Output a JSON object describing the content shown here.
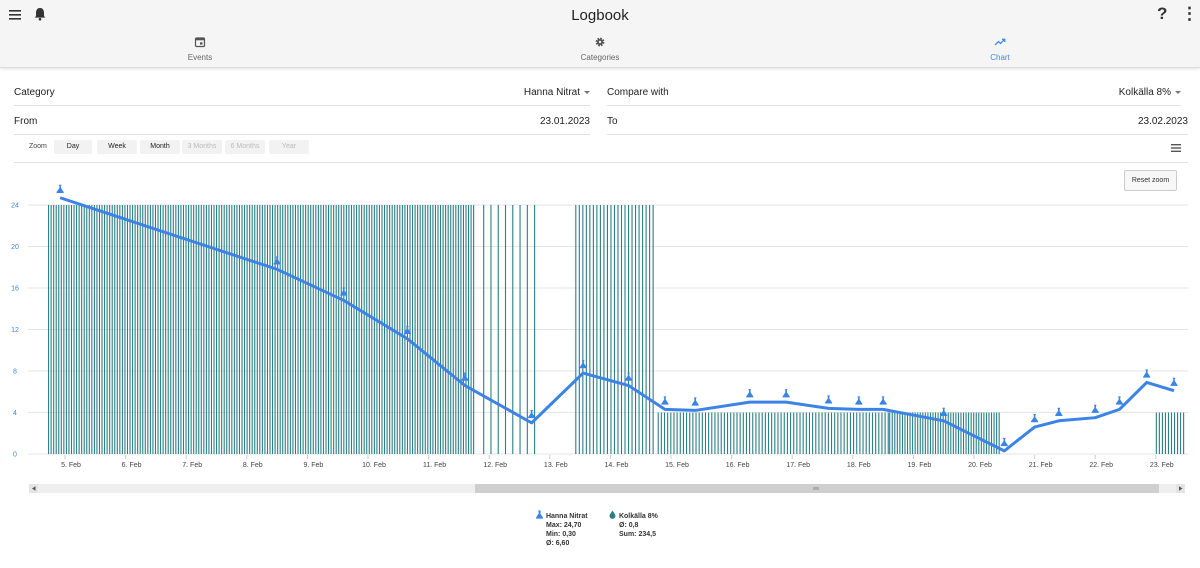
{
  "app": {
    "title": "Logbook"
  },
  "appbar": {
    "help": "?",
    "more": "⋮",
    "menu_icon": "menu-icon",
    "bell_icon": "bell-icon"
  },
  "tabs": [
    {
      "label": "Events",
      "icon": "calendar-icon",
      "active": false
    },
    {
      "label": "Categories",
      "icon": "gear-icon",
      "active": false
    },
    {
      "label": "Chart",
      "icon": "trending-up-icon",
      "active": true
    }
  ],
  "form": {
    "category_label": "Category",
    "category_value": "Hanna Nitrat",
    "compare_label": "Compare with",
    "compare_value": "Kolkälla 8%",
    "from_label": "From",
    "from_value": "23.01.2023",
    "to_label": "To",
    "to_value": "23.02.2023"
  },
  "zoom": {
    "label": "Zoom",
    "buttons": [
      {
        "label": "Day",
        "enabled": true
      },
      {
        "label": "Week",
        "enabled": true
      },
      {
        "label": "Month",
        "enabled": true
      },
      {
        "label": "3 Months",
        "enabled": false
      },
      {
        "label": "6 Months",
        "enabled": false
      },
      {
        "label": "Year",
        "enabled": false
      }
    ],
    "reset_label": "Reset zoom"
  },
  "colors": {
    "line": "#3b84e6",
    "bars": "#2b7f86",
    "accent": "#3b8ded"
  },
  "chart_data": {
    "type": "line",
    "y_ticks": [
      0,
      4,
      8,
      12,
      16,
      20,
      24
    ],
    "ylim": [
      0,
      24
    ],
    "x_ticks": [
      "5. Feb",
      "6. Feb",
      "7. Feb",
      "8. Feb",
      "9. Feb",
      "10. Feb",
      "11. Feb",
      "12. Feb",
      "13. Feb",
      "14. Feb",
      "15. Feb",
      "16. Feb",
      "17. Feb",
      "18. Feb",
      "19. Feb",
      "20. Feb",
      "21. Feb",
      "22. Feb",
      "23. Feb"
    ],
    "xlim_days": [
      4.7,
      23.9
    ],
    "series": [
      {
        "name": "Hanna Nitrat",
        "kind": "line",
        "points": [
          {
            "x": 4.92,
            "y": 24.7
          },
          {
            "x": 8.5,
            "y": 17.8
          },
          {
            "x": 9.6,
            "y": 14.8
          },
          {
            "x": 10.65,
            "y": 11.1
          },
          {
            "x": 11.6,
            "y": 6.6
          },
          {
            "x": 12.7,
            "y": 3.0
          },
          {
            "x": 13.55,
            "y": 7.8
          },
          {
            "x": 14.3,
            "y": 6.6
          },
          {
            "x": 14.9,
            "y": 4.3
          },
          {
            "x": 15.4,
            "y": 4.2
          },
          {
            "x": 16.3,
            "y": 5.0
          },
          {
            "x": 16.9,
            "y": 5.0
          },
          {
            "x": 17.6,
            "y": 4.4
          },
          {
            "x": 18.1,
            "y": 4.3
          },
          {
            "x": 18.5,
            "y": 4.3
          },
          {
            "x": 19.5,
            "y": 3.2
          },
          {
            "x": 20.5,
            "y": 0.3
          },
          {
            "x": 21.0,
            "y": 2.6
          },
          {
            "x": 21.4,
            "y": 3.2
          },
          {
            "x": 22.0,
            "y": 3.5
          },
          {
            "x": 22.4,
            "y": 4.3
          },
          {
            "x": 22.85,
            "y": 6.9
          },
          {
            "x": 23.3,
            "y": 6.1
          }
        ],
        "stats": {
          "max": "Max: 24,70",
          "min": "Min: 0,30",
          "avg": "Ø: 6,60"
        }
      },
      {
        "name": "Kolkälla 8%",
        "kind": "bar",
        "groups": [
          {
            "from": 4.72,
            "to": 11.75,
            "step": 0.042,
            "value": 24
          },
          {
            "from": 11.9,
            "to": 12.75,
            "step": 0.12,
            "value": 24
          },
          {
            "from": 13.42,
            "to": 14.75,
            "step": 0.058,
            "value": 24
          },
          {
            "from": 14.78,
            "to": 18.6,
            "step": 0.052,
            "value": 4
          },
          {
            "from": 18.6,
            "to": 20.42,
            "step": 0.042,
            "value": 4
          },
          {
            "from": 23.0,
            "to": 23.48,
            "step": 0.05,
            "value": 4
          }
        ],
        "stats": {
          "avg": "Ø: 0,8",
          "sum": "Sum: 234,5"
        }
      }
    ]
  }
}
